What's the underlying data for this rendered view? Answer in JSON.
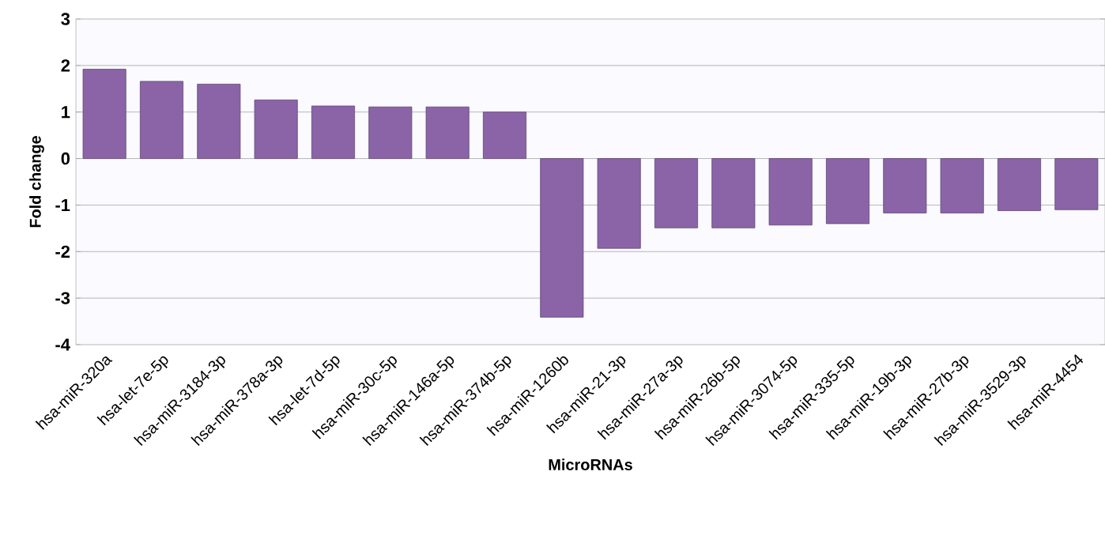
{
  "chart_data": {
    "type": "bar",
    "xlabel": "MicroRNAs",
    "ylabel": "Fold change",
    "categories": [
      "hsa-miR-320a",
      "hsa-let-7e-5p",
      "hsa-miR-3184-3p",
      "hsa-miR-378a-3p",
      "hsa-let-7d-5p",
      "hsa-miR-30c-5p",
      "hsa-miR-146a-5p",
      "hsa-miR-374b-5p",
      "hsa-miR-1260b",
      "hsa-miR-21-3p",
      "hsa-miR-27a-3p",
      "hsa-miR-26b-5p",
      "hsa-miR-3074-5p",
      "hsa-miR-335-5p",
      "hsa-miR-19b-3p",
      "hsa-miR-27b-3p",
      "hsa-miR-3529-3p",
      "hsa-miR-4454"
    ],
    "values": [
      1.92,
      1.66,
      1.6,
      1.26,
      1.13,
      1.11,
      1.11,
      1.0,
      -3.41,
      -1.93,
      -1.49,
      -1.49,
      -1.43,
      -1.4,
      -1.17,
      -1.17,
      -1.12,
      -1.1
    ],
    "color": "#8b64a7",
    "ylim": [
      -4,
      3
    ],
    "yticks": [
      -4,
      -3,
      -2,
      -1,
      0,
      1,
      2,
      3
    ],
    "grid": "y"
  }
}
